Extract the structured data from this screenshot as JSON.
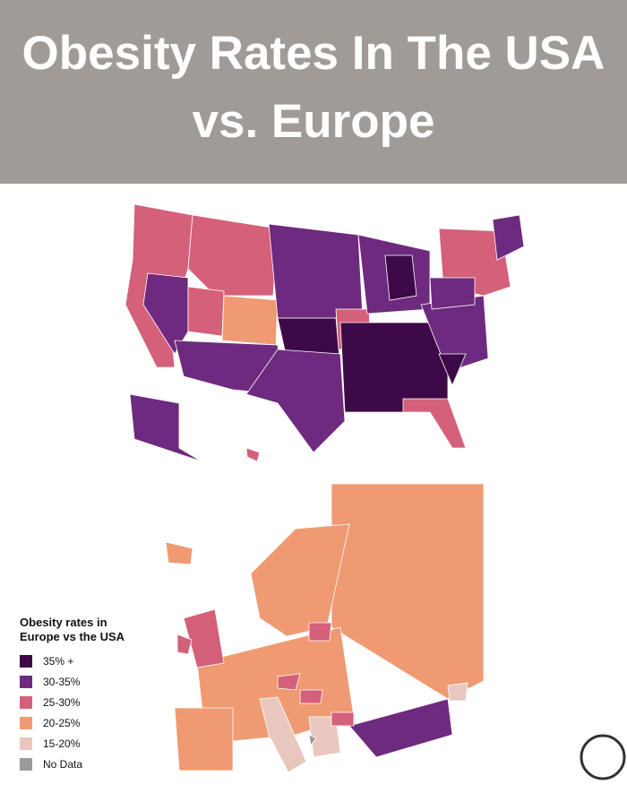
{
  "header": {
    "title": "Obesity Rates In The USA vs. Europe"
  },
  "legend": {
    "title": "Obesity rates in Europe vs the USA",
    "items": [
      {
        "label": "35% +",
        "color": "#3d0a47"
      },
      {
        "label": "30-35%",
        "color": "#6e2a7e"
      },
      {
        "label": "25-30%",
        "color": "#d4607a"
      },
      {
        "label": "20-25%",
        "color": "#ef9a72"
      },
      {
        "label": "15-20%",
        "color": "#e9c7bf"
      },
      {
        "label": "No Data",
        "color": "#9a9a9a"
      }
    ]
  }
}
